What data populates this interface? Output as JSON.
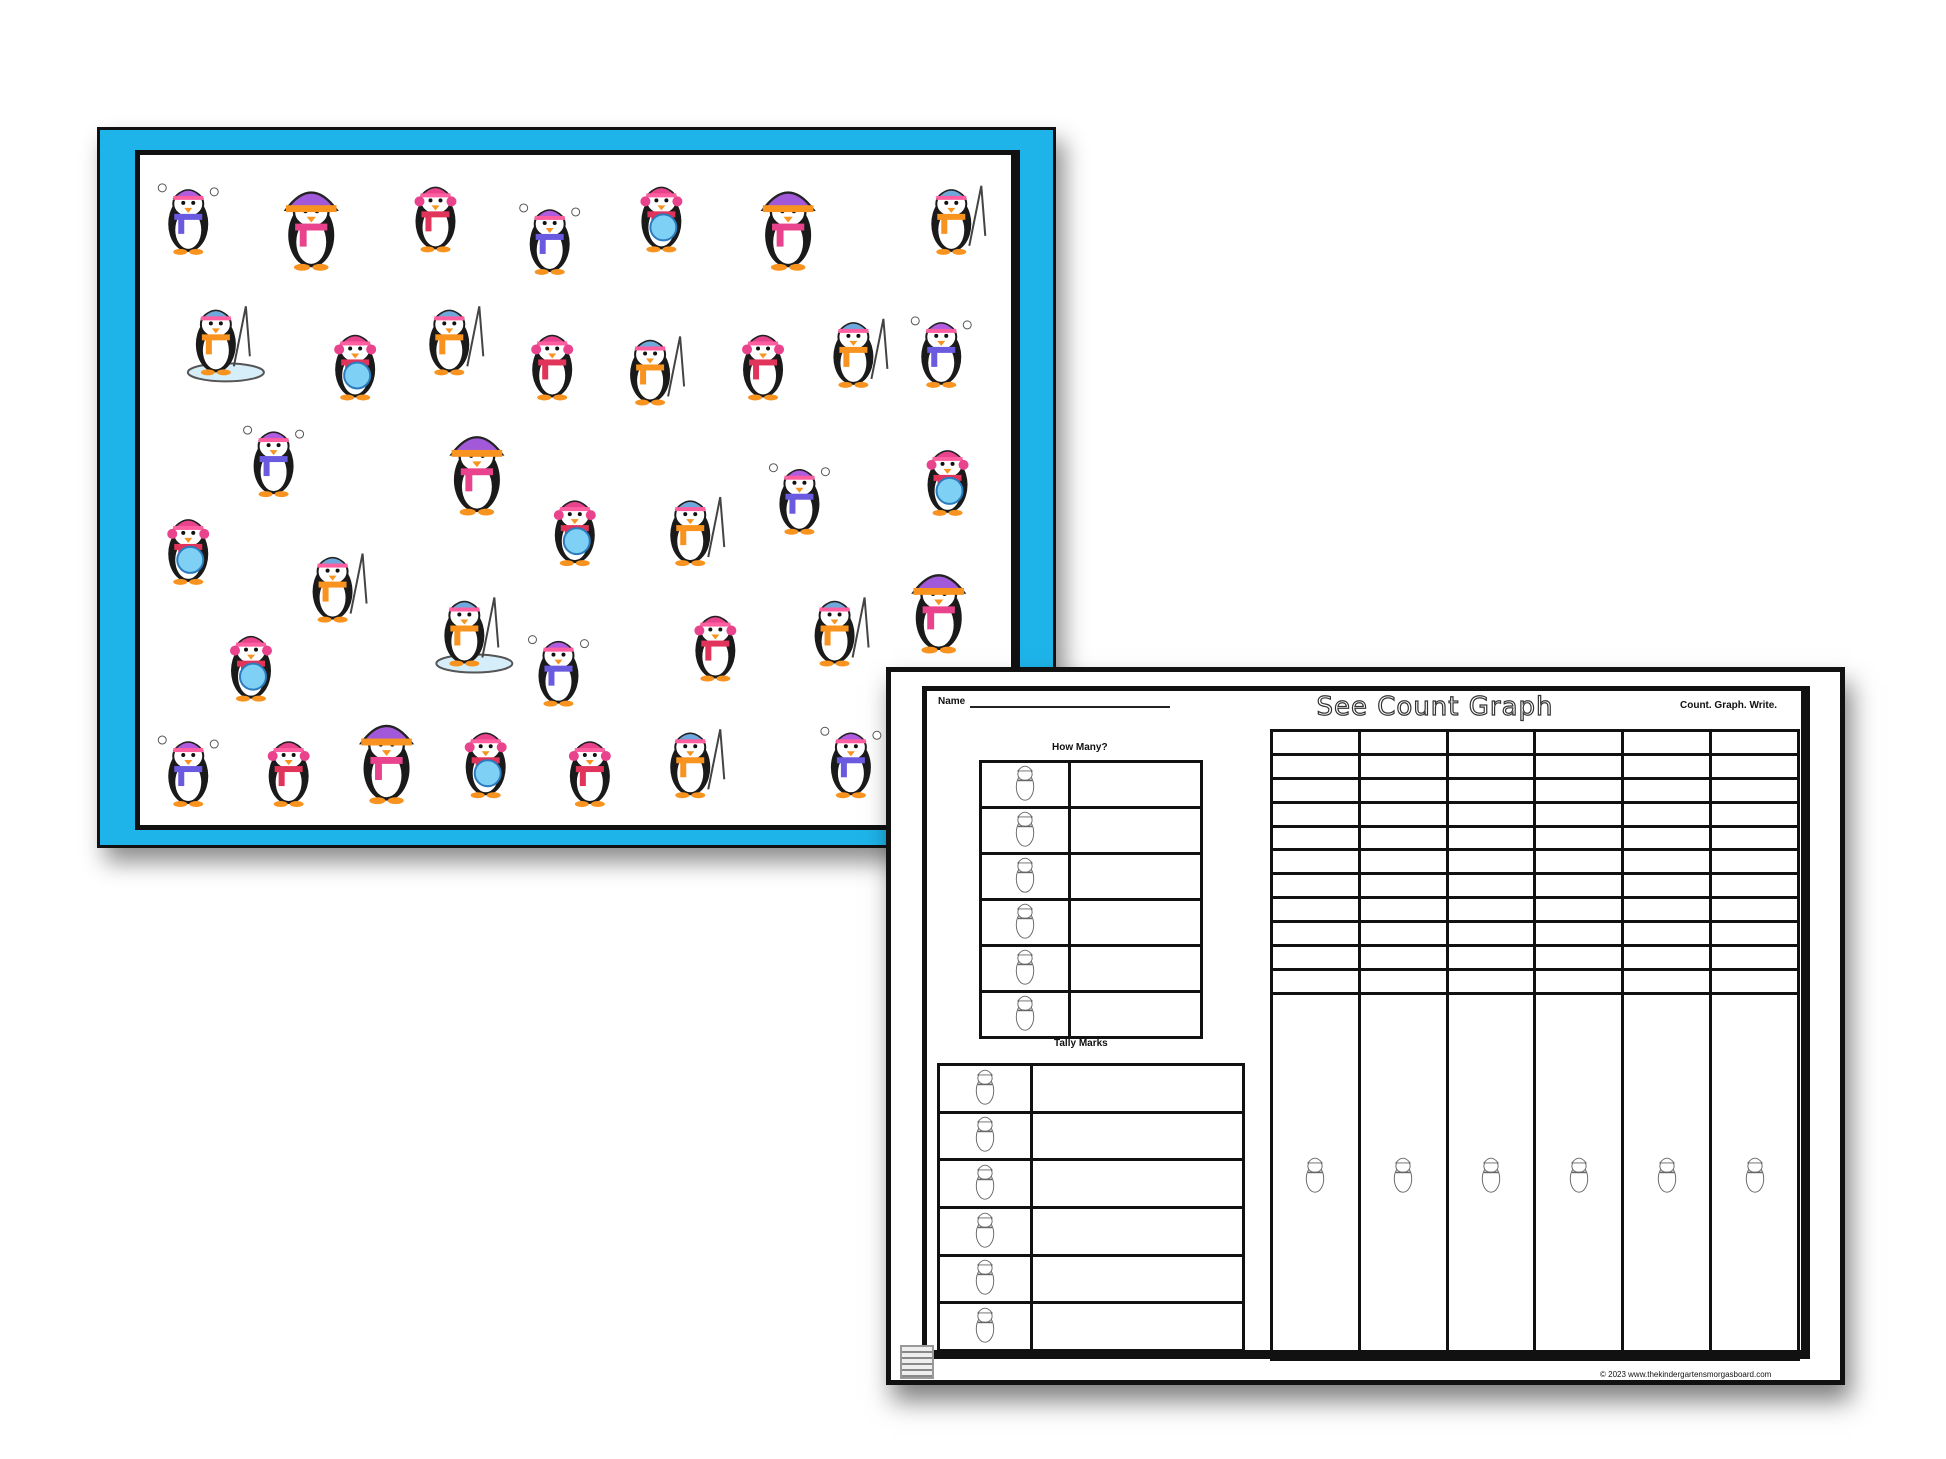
{
  "scene_card": {
    "border_color": "#1eb4ea",
    "penguin_types": [
      "juggling-penguin",
      "big-hat-penguin",
      "earmuff-penguin",
      "snowflake-penguin",
      "fishing-penguin",
      "ice-fishing-penguin"
    ]
  },
  "worksheet": {
    "name_label": "Name",
    "title": "See Count Graph",
    "instructions": "Count. Graph. Write.",
    "how_many_label": "How Many?",
    "tally_label": "Tally Marks",
    "footer": "© 2023 www.thekindergartensmorgasboard.com",
    "graph_columns": 6,
    "graph_rows": 11,
    "row_icons": [
      "juggling-penguin",
      "big-hat-penguin",
      "fishing-penguin",
      "ice-fishing-penguin",
      "snowflake-penguin",
      "earmuff-penguin"
    ]
  }
}
